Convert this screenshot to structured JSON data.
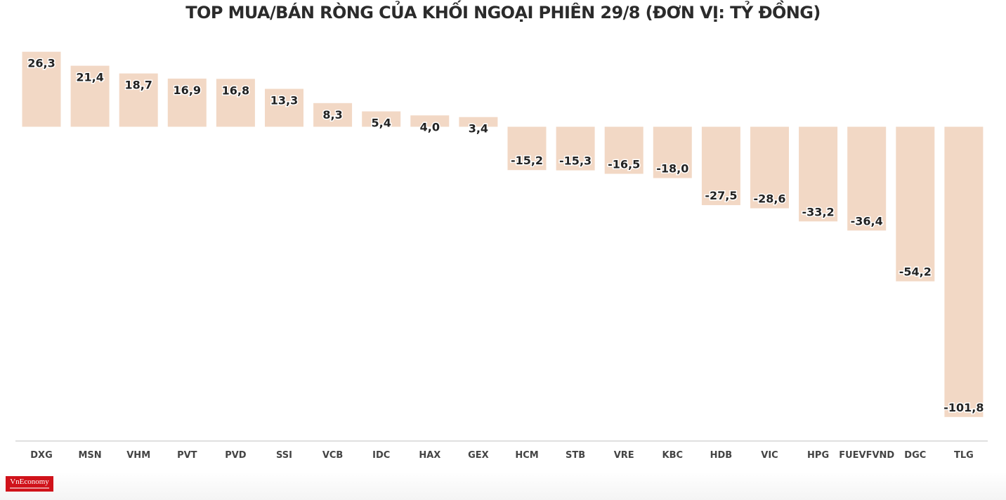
{
  "chart_data": {
    "type": "bar",
    "title": "TOP MUA/BÁN RÒNG CỦA KHỐI NGOẠI PHIÊN 29/8 (ĐƠN VỊ: TỶ ĐỒNG)",
    "categories": [
      "DXG",
      "MSN",
      "VHM",
      "PVT",
      "PVD",
      "SSI",
      "VCB",
      "IDC",
      "HAX",
      "GEX",
      "HCM",
      "STB",
      "VRE",
      "KBC",
      "HDB",
      "VIC",
      "HPG",
      "FUEVFVND",
      "DGC",
      "TLG"
    ],
    "values": [
      26.3,
      21.4,
      18.7,
      16.9,
      16.8,
      13.3,
      8.3,
      5.4,
      4.0,
      3.4,
      -15.2,
      -15.3,
      -16.5,
      -18.0,
      -27.5,
      -28.6,
      -33.2,
      -36.4,
      -54.2,
      -101.8
    ],
    "value_labels": [
      "26,3",
      "21,4",
      "18,7",
      "16,9",
      "16,8",
      "13,3",
      "8,3",
      "5,4",
      "4,0",
      "3,4",
      "-15,2",
      "-15,3",
      "-16,5",
      "-18,0",
      "-27,5",
      "-28,6",
      "-33,2",
      "-36,4",
      "-54,2",
      "-101,8"
    ],
    "xlabel": "",
    "ylabel": "",
    "ylim": [
      -110,
      27
    ],
    "grid": false,
    "legend": "none",
    "bar_color": "#f2d8c5",
    "axis_color": "#cccccc"
  },
  "logo": {
    "text": "VnEconomy",
    "color": "#d0121a"
  }
}
